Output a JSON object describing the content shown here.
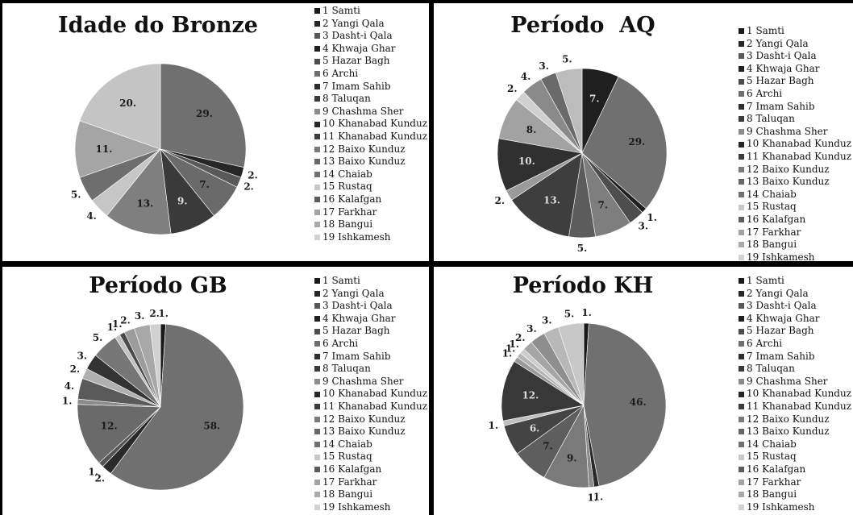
{
  "legend_labels": [
    "1 Samti",
    "2 Yangi Qala",
    "3 Dasht-i Qala",
    "4 Khwaja Ghar",
    "5 Hazar Bagh",
    "6 Archi",
    "7 Imam Sahib",
    "8 Taluqan",
    "9 Chashma Sher",
    "10 Khanabad Kunduz",
    "11 Khanabad Kunduz",
    "12 Baixo Kunduz",
    "13 Baixo Kunduz",
    "14 Chaiab",
    "15 Rustaq",
    "16 Kalafgan",
    "17 Farkhar",
    "18 Bangui",
    "19 Ishkamesh"
  ],
  "legend_colors": [
    "#1a1a1a",
    "#262626",
    "#595959",
    "#202020",
    "#4d4d4d",
    "#6e6e6e",
    "#2e2e2e",
    "#3a3a3a",
    "#8c8c8c",
    "#262626",
    "#3b3b3b",
    "#7a7a7a",
    "#666666",
    "#707070",
    "#c8c8c8",
    "#5c5c5c",
    "#a3a3a3",
    "#aaaaaa",
    "#d2d2d2"
  ],
  "chart_data": [
    {
      "type": "pie",
      "title": "Idade do Bronze",
      "slices": [
        {
          "label": "29.",
          "value": 29,
          "color": "#707070"
        },
        {
          "label": "2.",
          "value": 2,
          "color": "#262626"
        },
        {
          "label": "2.",
          "value": 2,
          "color": "#595959"
        },
        {
          "label": "7.",
          "value": 7,
          "color": "#6a6a6a"
        },
        {
          "label": "9.",
          "value": 9,
          "color": "#3a3a3a"
        },
        {
          "label": "13.",
          "value": 13,
          "color": "#7f7f7f"
        },
        {
          "label": "4.",
          "value": 4,
          "color": "#c6c6c6"
        },
        {
          "label": "5.",
          "value": 5,
          "color": "#6e6e6e"
        },
        {
          "label": "11.",
          "value": 11,
          "color": "#a5a5a5"
        },
        {
          "label": "20.",
          "value": 20,
          "color": "#c4c4c4"
        }
      ]
    },
    {
      "type": "pie",
      "title": "Período  AQ",
      "slices": [
        {
          "label": "7.",
          "value": 7,
          "color": "#1f1f1f"
        },
        {
          "label": "29.",
          "value": 29,
          "color": "#707070"
        },
        {
          "label": "1.",
          "value": 1,
          "color": "#202020"
        },
        {
          "label": "3.",
          "value": 3,
          "color": "#4d4d4d"
        },
        {
          "label": "7.",
          "value": 7,
          "color": "#7e7e7e"
        },
        {
          "label": "5.",
          "value": 5,
          "color": "#5c5c5c"
        },
        {
          "label": "13.",
          "value": 13,
          "color": "#3e3e3e"
        },
        {
          "label": "2.",
          "value": 2,
          "color": "#9a9a9a"
        },
        {
          "label": "10.",
          "value": 10,
          "color": "#303030"
        },
        {
          "label": "8.",
          "value": 8,
          "color": "#a2a2a2"
        },
        {
          "label": "2.",
          "value": 2,
          "color": "#d0d0d0"
        },
        {
          "label": "4.",
          "value": 4,
          "color": "#8a8a8a"
        },
        {
          "label": "3.",
          "value": 3,
          "color": "#6a6a6a"
        },
        {
          "label": "5.",
          "value": 5,
          "color": "#bcbcbc"
        }
      ]
    },
    {
      "type": "pie",
      "title": "Período GB",
      "slices": [
        {
          "label": "1.",
          "value": 1,
          "color": "#1a1a1a"
        },
        {
          "label": "58.",
          "value": 58,
          "color": "#707070"
        },
        {
          "label": "2.",
          "value": 2,
          "color": "#2a2a2a"
        },
        {
          "label": "1.",
          "value": 1,
          "color": "#555555"
        },
        {
          "label": "12.",
          "value": 12,
          "color": "#6a6a6a"
        },
        {
          "label": "1.",
          "value": 1,
          "color": "#8a8a8a"
        },
        {
          "label": "4.",
          "value": 4,
          "color": "#5a5a5a"
        },
        {
          "label": "2.",
          "value": 2,
          "color": "#b0b0b0"
        },
        {
          "label": "3.",
          "value": 3,
          "color": "#333333"
        },
        {
          "label": "5.",
          "value": 5,
          "color": "#777777"
        },
        {
          "label": "1.",
          "value": 1,
          "color": "#c2c2c2"
        },
        {
          "label": "1.",
          "value": 1,
          "color": "#4a4a4a"
        },
        {
          "label": "2.",
          "value": 2,
          "color": "#9c9c9c"
        },
        {
          "label": "3.",
          "value": 3,
          "color": "#a8a8a8"
        },
        {
          "label": "2.",
          "value": 2,
          "color": "#d0d0d0"
        }
      ]
    },
    {
      "type": "pie",
      "title": "Período KH",
      "slices": [
        {
          "label": "1.",
          "value": 1,
          "color": "#1a1a1a"
        },
        {
          "label": "46.",
          "value": 46,
          "color": "#707070"
        },
        {
          "label": "1.",
          "value": 1,
          "color": "#2a2a2a"
        },
        {
          "label": "1.",
          "value": 1,
          "color": "#8a8a8a"
        },
        {
          "label": "9.",
          "value": 9,
          "color": "#7a7a7a"
        },
        {
          "label": "7.",
          "value": 7,
          "color": "#5e5e5e"
        },
        {
          "label": "6.",
          "value": 6,
          "color": "#444444"
        },
        {
          "label": "1.",
          "value": 1,
          "color": "#c0c0c0"
        },
        {
          "label": "12.",
          "value": 12,
          "color": "#383838"
        },
        {
          "label": "1.",
          "value": 1,
          "color": "#9a9a9a"
        },
        {
          "label": "1.",
          "value": 1,
          "color": "#b4b4b4"
        },
        {
          "label": "1.",
          "value": 1,
          "color": "#cccccc"
        },
        {
          "label": "2.",
          "value": 2,
          "color": "#a5a5a5"
        },
        {
          "label": "3.",
          "value": 3,
          "color": "#8e8e8e"
        },
        {
          "label": "3.",
          "value": 3,
          "color": "#b8b8b8"
        },
        {
          "label": "5.",
          "value": 5,
          "color": "#c8c8c8"
        }
      ]
    }
  ]
}
